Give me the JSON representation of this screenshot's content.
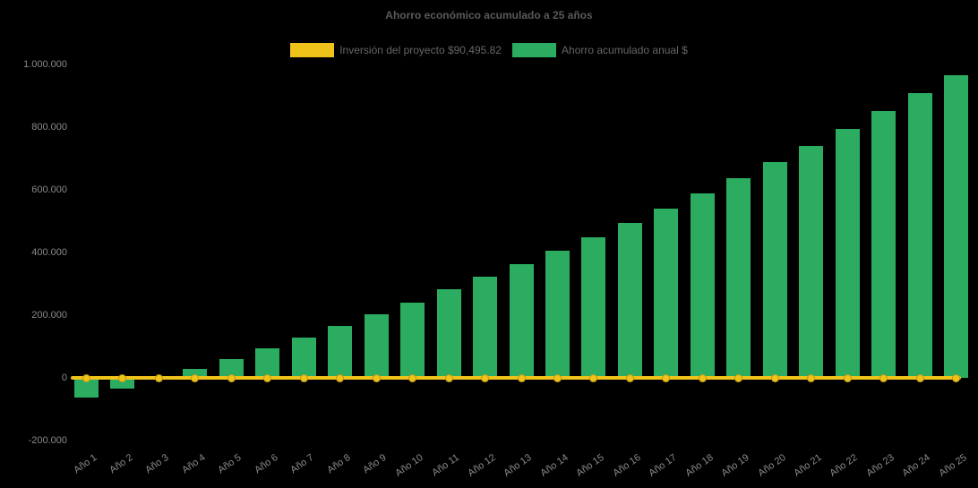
{
  "background_color": "#000000",
  "text_colors": {
    "title": "#595959",
    "legend": "#666666",
    "axis": "#8a8a8a"
  },
  "legend": [
    {
      "label": "Inversión del proyecto $90,495.82",
      "color": "#EFC319",
      "marker": "line"
    },
    {
      "label": "Ahorro acumulado anual $",
      "color": "#2BAC61",
      "marker": "bar"
    }
  ],
  "chart_data": {
    "type": "bar",
    "title": "Ahorro económico acumulado a 25 años",
    "categories": [
      "Año 1",
      "Año 2",
      "Año 3",
      "Año 4",
      "Año 5",
      "Año 6",
      "Año 7",
      "Año 8",
      "Año 9",
      "Año 10",
      "Año 11",
      "Año 12",
      "Año 13",
      "Año 14",
      "Año 15",
      "Año 16",
      "Año 17",
      "Año 18",
      "Año 19",
      "Año 20",
      "Año 21",
      "Año 22",
      "Año 23",
      "Año 24",
      "Año 25"
    ],
    "series": [
      {
        "name": "Inversión del proyecto $90,495.82",
        "type": "line",
        "color": "#EFC319",
        "marker": "circle",
        "values": [
          0,
          0,
          0,
          0,
          0,
          0,
          0,
          0,
          0,
          0,
          0,
          0,
          0,
          0,
          0,
          0,
          0,
          0,
          0,
          0,
          0,
          0,
          0,
          0,
          0
        ]
      },
      {
        "name": "Ahorro acumulado anual $",
        "type": "bar",
        "color": "#2BAC61",
        "values": [
          -62000,
          -33000,
          -3000,
          28000,
          61000,
          94000,
          128000,
          165000,
          202000,
          241000,
          282000,
          323000,
          364000,
          405000,
          448000,
          494000,
          540000,
          588000,
          636000,
          688000,
          740000,
          794000,
          852000,
          910000,
          966000
        ]
      }
    ],
    "y_axis": {
      "min": -200000,
      "max": 1000000,
      "tick_step": 200000,
      "ticks": [
        {
          "value": 1000000,
          "label": "1.000.000"
        },
        {
          "value": 800000,
          "label": "800.000"
        },
        {
          "value": 600000,
          "label": "600.000"
        },
        {
          "value": 400000,
          "label": "400.000"
        },
        {
          "value": 200000,
          "label": "200.000"
        },
        {
          "value": 0,
          "label": "0"
        },
        {
          "value": -200000,
          "label": "-200.000"
        }
      ]
    },
    "grid": false,
    "legend_position": "top",
    "x_label_rotation_deg": -35
  }
}
